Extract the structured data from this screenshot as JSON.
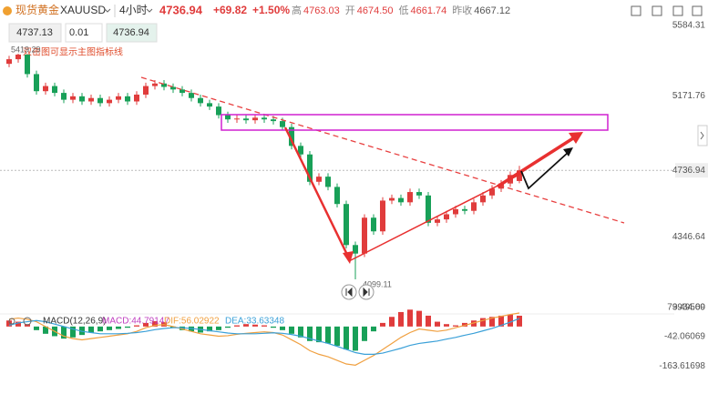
{
  "header": {
    "name": "现货黄金",
    "symbol": "XAUUSD",
    "period": "4小时",
    "price": "4736.94",
    "change": "+69.82",
    "change_pct": "+1.50%",
    "stats": [
      {
        "label": "高",
        "value": "4763.03"
      },
      {
        "label": "开",
        "value": "4674.50"
      },
      {
        "label": "低",
        "value": "4661.74"
      },
      {
        "label": "昨收",
        "value": "4667.12"
      }
    ]
  },
  "inputs": [
    "4737.13",
    "0.01",
    "4736.94"
  ],
  "hint": "双击图可显示主图指标线",
  "chart_data": [
    {
      "type": "candlestick",
      "up_color": "#e03c3c",
      "down_color": "#18a058",
      "open": [
        5360,
        5387,
        5414,
        5300,
        5200,
        5230,
        5190,
        5150,
        5170,
        5140,
        5160,
        5130,
        5150,
        5170,
        5140,
        5180,
        5230,
        5245,
        5225,
        5210,
        5190,
        5160,
        5130,
        5110,
        5060,
        5035,
        5040,
        5030,
        5045,
        5035,
        5025,
        4990,
        4880,
        4830,
        4670,
        4700,
        4640,
        4540,
        4300,
        4250,
        4460,
        4380,
        4560,
        4575,
        4550,
        4610,
        4590,
        4430,
        4450,
        4480,
        4510,
        4500,
        4550,
        4590,
        4630,
        4660,
        4674.5
      ],
      "high": [
        5407,
        5419.29,
        5415,
        5320,
        5250,
        5250,
        5210,
        5190,
        5190,
        5180,
        5180,
        5170,
        5190,
        5190,
        5200,
        5250,
        5265,
        5265,
        5245,
        5230,
        5210,
        5180,
        5150,
        5130,
        5080,
        5060,
        5060,
        5065,
        5065,
        5055,
        5045,
        5010,
        4900,
        4850,
        4720,
        4720,
        4660,
        4560,
        4320,
        4480,
        4480,
        4580,
        4595,
        4595,
        4630,
        4630,
        4610,
        4470,
        4500,
        4530,
        4530,
        4570,
        4610,
        4650,
        4680,
        4730,
        4763.03
      ],
      "low": [
        5340,
        5367,
        5280,
        5180,
        5180,
        5170,
        5130,
        5130,
        5120,
        5120,
        5110,
        5110,
        5130,
        5120,
        5120,
        5160,
        5210,
        5205,
        5190,
        5170,
        5140,
        5110,
        5090,
        5040,
        5015,
        5015,
        5010,
        5010,
        5015,
        5005,
        4970,
        4860,
        4810,
        4650,
        4650,
        4620,
        4520,
        4280,
        4099.11,
        4230,
        4360,
        4360,
        4540,
        4530,
        4530,
        4570,
        4410,
        4410,
        4430,
        4460,
        4480,
        4480,
        4530,
        4570,
        4610,
        4640,
        4661.74
      ],
      "close": [
        5387,
        5414,
        5300,
        5200,
        5230,
        5190,
        5150,
        5170,
        5140,
        5160,
        5130,
        5150,
        5170,
        5140,
        5180,
        5230,
        5245,
        5225,
        5210,
        5190,
        5160,
        5130,
        5110,
        5060,
        5035,
        5040,
        5030,
        5045,
        5035,
        5025,
        4990,
        4880,
        4830,
        4670,
        4700,
        4640,
        4540,
        4300,
        4250,
        4460,
        4380,
        4560,
        4575,
        4550,
        4610,
        4590,
        4430,
        4450,
        4480,
        4510,
        4500,
        4550,
        4590,
        4630,
        4660,
        4710,
        4736.94
      ],
      "ylim": [
        3897,
        5627
      ],
      "yticks": [
        {
          "value": 5584.31,
          "label": "5584.31"
        },
        {
          "value": 5171.76,
          "label": "5171.76"
        },
        {
          "value": 4346.64,
          "label": "4346.64"
        },
        {
          "value": 3934.09,
          "label": "3934.09"
        }
      ],
      "last_price": 4736.94
    },
    {
      "type": "macd",
      "title": "MACD(12,26,9)",
      "series": [
        {
          "name": "MACD",
          "label": "MACD:44.79147",
          "color": "#e03c3c",
          "negative_color": "#18a058",
          "values": [
            25,
            20,
            10,
            -15,
            -30,
            -40,
            -50,
            -45,
            -35,
            -25,
            -20,
            -15,
            -10,
            -5,
            5,
            15,
            22,
            18,
            -5,
            -15,
            -20,
            -25,
            -20,
            -15,
            -5,
            5,
            10,
            8,
            5,
            -5,
            -15,
            -30,
            -45,
            -60,
            -65,
            -70,
            -80,
            -95,
            -100,
            -60,
            -20,
            15,
            40,
            60,
            70,
            65,
            45,
            20,
            10,
            5,
            15,
            25,
            35,
            40,
            45,
            50,
            44.79147
          ]
        },
        {
          "name": "DIF",
          "label": "DIF:56.02922",
          "color": "#f0a040",
          "values": [
            30,
            35,
            30,
            20,
            0,
            -20,
            -40,
            -50,
            -55,
            -50,
            -45,
            -40,
            -35,
            -30,
            -20,
            -5,
            5,
            8,
            0,
            -10,
            -20,
            -30,
            -35,
            -40,
            -38,
            -32,
            -28,
            -25,
            -22,
            -25,
            -35,
            -55,
            -75,
            -100,
            -115,
            -125,
            -140,
            -155,
            -160,
            -140,
            -120,
            -95,
            -70,
            -45,
            -25,
            -10,
            -15,
            -20,
            -15,
            -5,
            5,
            15,
            25,
            35,
            42,
            50,
            56.02922
          ]
        },
        {
          "name": "DEA",
          "label": "DEA:33.63348",
          "color": "#3aa0d8",
          "values": [
            5,
            15,
            20,
            25,
            20,
            10,
            0,
            -10,
            -20,
            -25,
            -30,
            -30,
            -30,
            -28,
            -25,
            -20,
            -13,
            -8,
            -5,
            -5,
            -8,
            -12,
            -17,
            -22,
            -27,
            -30,
            -30,
            -30,
            -28,
            -26,
            -28,
            -33,
            -40,
            -50,
            -60,
            -70,
            -82,
            -95,
            -108,
            -115,
            -115,
            -110,
            -100,
            -90,
            -78,
            -70,
            -65,
            -60,
            -52,
            -45,
            -36,
            -28,
            -18,
            -8,
            5,
            18,
            33.63348
          ]
        }
      ],
      "ylim": [
        -204,
        105
      ],
      "yticks": [
        {
          "value": 79.4956,
          "label": "79.49560"
        },
        -42.06069,
        -163.61698
      ]
    }
  ]
}
